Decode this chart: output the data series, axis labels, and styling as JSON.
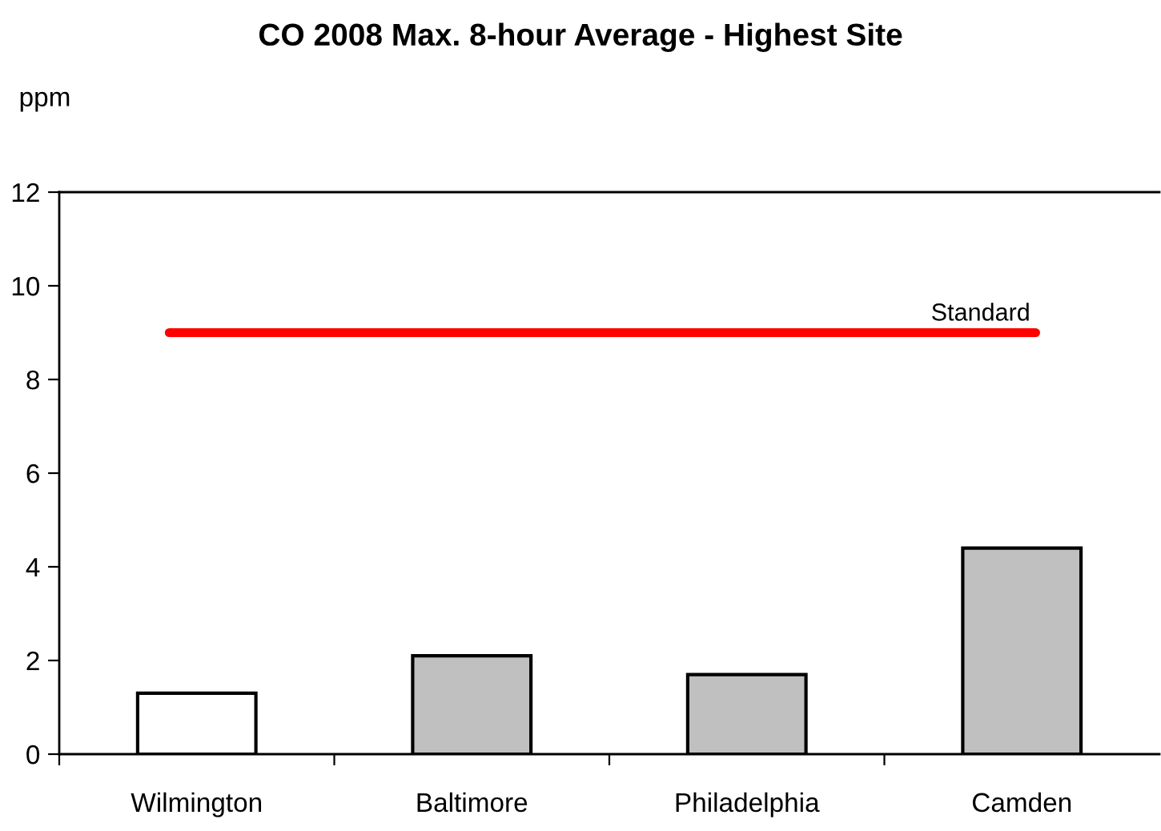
{
  "chart_data": {
    "type": "bar",
    "title": "CO 2008 Max. 8-hour Average - Highest Site",
    "ylabel": "ppm",
    "categories": [
      "Wilmington",
      "Baltimore",
      "Philadelphia",
      "Camden"
    ],
    "values": [
      1.3,
      2.1,
      1.7,
      4.4
    ],
    "colors": [
      "#ffffff",
      "#c0c0c0",
      "#c0c0c0",
      "#c0c0c0"
    ],
    "ylim": [
      0,
      12
    ],
    "yticks": [
      0,
      2,
      4,
      6,
      8,
      10,
      12
    ],
    "grid": false,
    "legend": false,
    "ref_lines": [
      {
        "axis": "y",
        "value": 9,
        "label": "Standard",
        "color": "#ff0000",
        "line_style": "solid"
      }
    ]
  }
}
